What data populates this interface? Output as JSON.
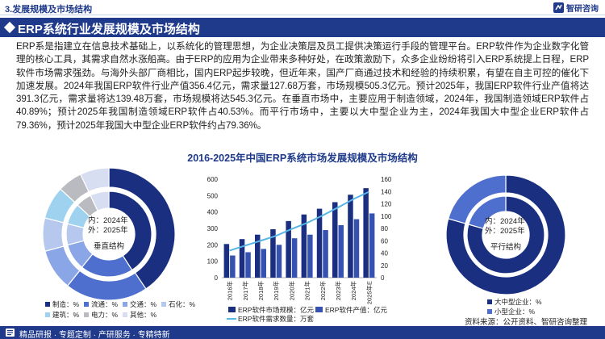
{
  "header": {
    "section_title": "3.发展规模及市场结构",
    "brand": "智研咨询"
  },
  "title": "ERP系统行业发展规模及市场结构",
  "paragraph": "ERP系是指建立在信息技术基础上，以系统化的管理思想，为企业决策层及员工提供决策运行手段的管理平台。ERP软件作为企业数字化管理的核心工具，其需求自然水涨船高。由于ERP的应用为企业带来多种好处，在政策激励下，众多企业纷纷将引入ERP系统提上日程，ERP软件市场需求强劲。与海外头部厂商相比，国内ERP起步较晚，但近年来，国产厂商通过技术和经验的持续积累，有望在自主可控的催化下加速发展。2024年我国ERP软件行业产值356.4亿元，需求量127.68万套，市场规模505.3亿元。预计2025年，我国ERP软件行业产值将达391.3亿元，需求量将达139.48万套，市场规模将达545.3亿元。在垂直市场中，主要应用于制造领域，2024年，我国制造领域ERP软件占40.89%；预计2025年我国制造领域ERP软件占40.53%。而平行市场中，主要以大中型企业为主，2024年我国大中型企业ERP软件占79.36%，预计2025年我国大中型企业ERP软件约占79.36%。",
  "chart_data": [
    {
      "type": "bar",
      "title": "2016-2025年中国ERP系统市场发展规模及市场结构",
      "categories": [
        "2016年",
        "2017年",
        "2018年",
        "2019年",
        "2020年",
        "2021年",
        "2022年",
        "2023年",
        "2024年",
        "2025年E"
      ],
      "series": [
        {
          "name": "ERP软件市场规模：亿元",
          "axis": "left",
          "kind": "bar",
          "color": "#1a2f80",
          "values": [
            205,
            235,
            262,
            295,
            345,
            385,
            420,
            460,
            505.3,
            545.3
          ]
        },
        {
          "name": "ERP软件产值：亿元",
          "axis": "left",
          "kind": "bar",
          "color": "#3552b0",
          "values": [
            135,
            155,
            175,
            200,
            240,
            262,
            290,
            320,
            356.4,
            391.3
          ]
        },
        {
          "name": "ERP软件需求数量：万套",
          "axis": "right",
          "kind": "line",
          "color": "#56b6e6",
          "values": [
            44,
            52,
            60,
            68,
            79,
            89,
            101,
            114,
            127.68,
            139.48
          ]
        }
      ],
      "yaxis_left": {
        "min": 0,
        "max": 600,
        "ticks": [
          0,
          100,
          200,
          300,
          400,
          500,
          600
        ]
      },
      "yaxis_right": {
        "min": 0,
        "max": 160,
        "ticks": [
          0,
          20,
          40,
          60,
          80,
          100,
          120,
          140,
          160
        ]
      },
      "legend_position": "bottom"
    },
    {
      "type": "pie",
      "subtype": "double-donut",
      "title": "垂直结构",
      "center_label_inner": "内：2024年",
      "center_label_outer": "外：2025年",
      "categories": [
        "制造",
        "流通",
        "交通",
        "石化",
        "建筑",
        "电力",
        "其他"
      ],
      "legend_suffix": "：%",
      "colors": [
        "#1a2f80",
        "#4e6fce",
        "#8aa6e6",
        "#b7c8ef",
        "#9fd2ee",
        "#b9bbc0",
        "#d8def2"
      ],
      "inner_2024": [
        40.89,
        20.0,
        10.0,
        8.0,
        8.0,
        6.0,
        7.11
      ],
      "outer_2025": [
        40.53,
        20.2,
        10.1,
        8.1,
        8.0,
        6.0,
        7.07
      ]
    },
    {
      "type": "pie",
      "subtype": "double-donut",
      "title": "平行结构",
      "center_label_inner": "内：2024年",
      "center_label_outer": "外：2025年",
      "categories": [
        "大中型企业",
        "小型企业"
      ],
      "legend_suffix": "：%",
      "colors": [
        "#1a2f80",
        "#4e6fce"
      ],
      "inner_2024": [
        79.36,
        20.64
      ],
      "outer_2025": [
        79.36,
        20.64
      ]
    }
  ],
  "source": "资料来源：公开资料、智研咨询整理",
  "footer": {
    "left": "精品研报 · 专题定制 · 产研服务 · 专精特新"
  }
}
